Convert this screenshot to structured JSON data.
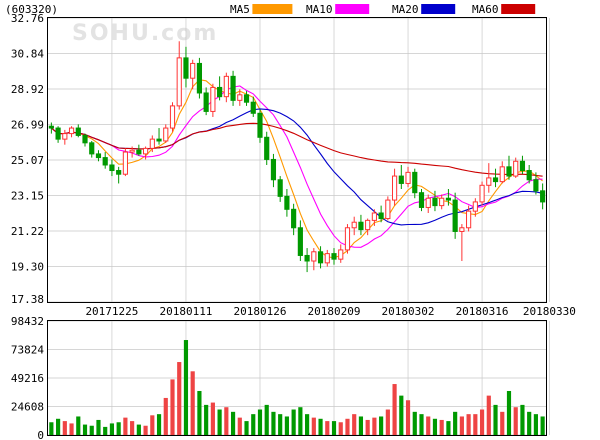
{
  "chart_data": {
    "type": "candlestick",
    "code": "(603320)",
    "watermark": "SOHU.com",
    "legend": [
      {
        "label": "MA5",
        "color": "#ff9900"
      },
      {
        "label": "MA10",
        "color": "#ff00ff"
      },
      {
        "label": "MA20",
        "color": "#0000cc"
      },
      {
        "label": "MA60",
        "color": "#cc0000"
      }
    ],
    "colors": {
      "up": "#ff3333",
      "down": "#009900",
      "grid": "#c8c8c8",
      "volume": "#ee4444"
    },
    "price_axis": {
      "min": 17.38,
      "max": 32.76,
      "ticks": [
        "32.76",
        "30.84",
        "28.92",
        "26.99",
        "25.07",
        "23.15",
        "21.22",
        "19.30",
        "17.38"
      ]
    },
    "volume_axis": {
      "min": 0,
      "max": 98432,
      "ticks": [
        "98432",
        "73824",
        "49216",
        "24608",
        "0"
      ]
    },
    "x_labels": [
      {
        "index": 9,
        "label": "20171225"
      },
      {
        "index": 20,
        "label": "20180111"
      },
      {
        "index": 31,
        "label": "20180126"
      },
      {
        "index": 42,
        "label": "20180209"
      },
      {
        "index": 53,
        "label": "20180302"
      },
      {
        "index": 64,
        "label": "20180316"
      },
      {
        "index": 74,
        "label": "20180330"
      }
    ],
    "candles": [
      [
        26.9,
        27.1,
        26.5,
        26.8
      ],
      [
        26.8,
        26.9,
        26.0,
        26.2
      ],
      [
        26.2,
        26.7,
        25.9,
        26.5
      ],
      [
        26.5,
        26.9,
        26.3,
        26.8
      ],
      [
        26.8,
        27.0,
        26.3,
        26.4
      ],
      [
        26.4,
        26.5,
        25.8,
        26.0
      ],
      [
        26.0,
        26.1,
        25.2,
        25.4
      ],
      [
        25.4,
        25.6,
        25.0,
        25.2
      ],
      [
        25.2,
        25.5,
        24.6,
        24.8
      ],
      [
        24.8,
        25.1,
        24.2,
        24.5
      ],
      [
        24.5,
        24.7,
        23.8,
        24.3
      ],
      [
        24.3,
        25.7,
        24.2,
        25.5
      ],
      [
        25.5,
        25.8,
        25.2,
        25.6
      ],
      [
        25.6,
        25.9,
        25.3,
        25.4
      ],
      [
        25.4,
        25.8,
        25.1,
        25.7
      ],
      [
        25.7,
        26.4,
        25.5,
        26.2
      ],
      [
        26.2,
        26.8,
        25.9,
        26.1
      ],
      [
        26.1,
        27.0,
        26.0,
        26.8
      ],
      [
        26.8,
        28.2,
        26.6,
        28.0
      ],
      [
        28.0,
        31.5,
        27.8,
        30.6
      ],
      [
        30.6,
        31.2,
        29.0,
        29.5
      ],
      [
        29.5,
        30.5,
        28.9,
        30.3
      ],
      [
        30.3,
        30.6,
        28.4,
        28.7
      ],
      [
        28.7,
        29.0,
        27.5,
        27.7
      ],
      [
        27.7,
        29.2,
        27.4,
        29.0
      ],
      [
        29.0,
        29.6,
        28.3,
        28.5
      ],
      [
        28.5,
        29.8,
        28.2,
        29.6
      ],
      [
        29.6,
        29.9,
        28.0,
        28.3
      ],
      [
        28.3,
        28.9,
        28.0,
        28.6
      ],
      [
        28.6,
        28.8,
        28.0,
        28.2
      ],
      [
        28.2,
        28.5,
        27.4,
        27.6
      ],
      [
        27.6,
        27.8,
        26.0,
        26.3
      ],
      [
        26.3,
        26.6,
        24.8,
        25.1
      ],
      [
        25.1,
        25.4,
        23.6,
        24.0
      ],
      [
        24.0,
        24.2,
        22.8,
        23.1
      ],
      [
        23.1,
        23.5,
        22.0,
        22.4
      ],
      [
        22.4,
        22.7,
        21.0,
        21.4
      ],
      [
        21.4,
        21.8,
        19.6,
        19.9
      ],
      [
        19.9,
        20.3,
        19.0,
        19.6
      ],
      [
        19.6,
        20.3,
        19.1,
        20.1
      ],
      [
        20.1,
        20.4,
        19.2,
        19.5
      ],
      [
        19.5,
        20.2,
        19.3,
        20.0
      ],
      [
        20.0,
        20.3,
        19.4,
        19.7
      ],
      [
        19.7,
        20.5,
        19.5,
        20.2
      ],
      [
        20.2,
        21.6,
        20.0,
        21.4
      ],
      [
        21.4,
        22.0,
        21.0,
        21.7
      ],
      [
        21.7,
        22.1,
        21.0,
        21.3
      ],
      [
        21.3,
        21.9,
        21.0,
        21.8
      ],
      [
        21.8,
        22.4,
        21.5,
        22.2
      ],
      [
        22.2,
        22.6,
        21.7,
        21.9
      ],
      [
        21.9,
        23.1,
        21.8,
        22.9
      ],
      [
        22.9,
        24.6,
        22.6,
        24.2
      ],
      [
        24.2,
        24.8,
        23.5,
        23.8
      ],
      [
        23.8,
        24.7,
        23.6,
        24.4
      ],
      [
        24.4,
        24.6,
        23.0,
        23.3
      ],
      [
        23.3,
        23.5,
        22.3,
        22.5
      ],
      [
        22.5,
        23.2,
        22.2,
        23.0
      ],
      [
        23.0,
        23.4,
        22.3,
        22.6
      ],
      [
        22.6,
        23.2,
        22.4,
        23.0
      ],
      [
        23.0,
        23.5,
        22.6,
        22.9
      ],
      [
        22.9,
        23.3,
        20.8,
        21.2
      ],
      [
        21.2,
        21.6,
        19.6,
        21.4
      ],
      [
        21.4,
        22.6,
        21.2,
        22.3
      ],
      [
        22.3,
        23.0,
        22.0,
        22.8
      ],
      [
        22.8,
        23.9,
        22.6,
        23.7
      ],
      [
        23.7,
        24.9,
        23.3,
        24.1
      ],
      [
        24.1,
        24.6,
        23.6,
        23.9
      ],
      [
        23.9,
        25.0,
        23.8,
        24.7
      ],
      [
        24.7,
        25.3,
        24.0,
        24.2
      ],
      [
        24.2,
        25.2,
        24.1,
        25.0
      ],
      [
        25.0,
        25.3,
        24.3,
        24.5
      ],
      [
        24.5,
        24.8,
        23.8,
        24.0
      ],
      [
        24.0,
        24.4,
        23.2,
        23.4
      ],
      [
        23.4,
        23.8,
        22.4,
        22.8
      ]
    ],
    "volume": [
      11000,
      14000,
      12000,
      10000,
      16000,
      9000,
      8000,
      13000,
      7000,
      10000,
      11000,
      15000,
      12000,
      9000,
      8000,
      17000,
      18000,
      32000,
      48000,
      63000,
      82000,
      55000,
      38000,
      26000,
      28000,
      22000,
      24000,
      20000,
      15000,
      12000,
      18000,
      22000,
      26000,
      20000,
      18000,
      16000,
      22000,
      24000,
      18000,
      15000,
      14000,
      12000,
      12000,
      11000,
      14000,
      18000,
      16000,
      13000,
      15000,
      16000,
      22000,
      44000,
      34000,
      30000,
      20000,
      18000,
      16000,
      14000,
      13000,
      12000,
      20000,
      16000,
      18000,
      18000,
      22000,
      34000,
      26000,
      20000,
      38000,
      24000,
      26000,
      20000,
      18000,
      16000
    ]
  }
}
